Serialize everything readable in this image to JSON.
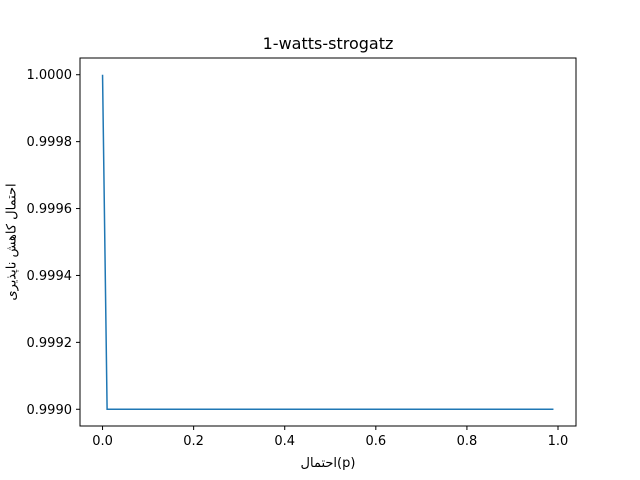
{
  "chart_data": {
    "type": "line",
    "title": "1-watts-strogatz",
    "xlabel": "احتمال(p)",
    "ylabel": "احتمال کاهش ناپذیری",
    "xlim": [
      -0.0495,
      1.0395
    ],
    "ylim": [
      0.99895,
      1.00005
    ],
    "xticks": [
      0.0,
      0.2,
      0.4,
      0.6,
      0.8,
      1.0
    ],
    "xtick_labels": [
      "0.0",
      "0.2",
      "0.4",
      "0.6",
      "0.8",
      "1.0"
    ],
    "yticks": [
      0.999,
      0.9992,
      0.9994,
      0.9996,
      0.9998,
      1.0
    ],
    "ytick_labels": [
      "0.9990",
      "0.9992",
      "0.9994",
      "0.9996",
      "0.9998",
      "1.0000"
    ],
    "grid": false,
    "line_color": "#1f77b4",
    "series": [
      {
        "x": [
          0.0,
          0.01,
          0.99
        ],
        "y": [
          1.0,
          0.999,
          0.999
        ]
      }
    ]
  }
}
